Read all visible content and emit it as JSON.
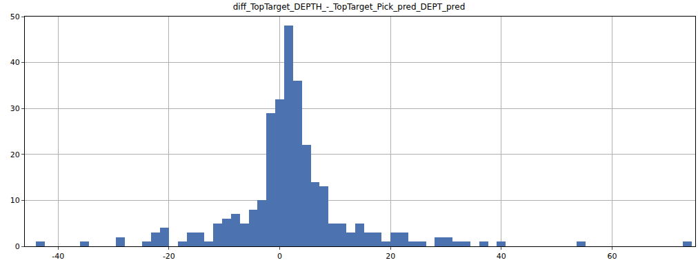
{
  "chart_data": {
    "type": "histogram",
    "title": "diff_TopTarget_DEPTH_-_TopTarget_Pick_pred_DEPT_pred",
    "bins": [
      -44,
      -42.4,
      -40.8,
      -39.2,
      -37.6,
      -36,
      -34.4,
      -32.8,
      -31.2,
      -29.6,
      -28,
      -26.4,
      -24.8,
      -23.2,
      -21.6,
      -20,
      -18.4,
      -16.8,
      -15.2,
      -13.6,
      -12,
      -10.4,
      -8.8,
      -7.2,
      -5.6,
      -4,
      -2.4,
      -0.8,
      0.8,
      2.4,
      4,
      5.6,
      7.2,
      8.8,
      10.4,
      12,
      13.6,
      15.2,
      16.8,
      18.4,
      20,
      21.6,
      23.2,
      24.8,
      26.4,
      28,
      29.6,
      31.2,
      32.8,
      34.4,
      36,
      37.6,
      39.2,
      40.8,
      42.4,
      44,
      45.6,
      47.2,
      48.8,
      50.4,
      52,
      53.6,
      55.2,
      56.8,
      58.4,
      60,
      61.6,
      63.2,
      64.8,
      66.4,
      68,
      69.6,
      71.2,
      72.8,
      74.4
    ],
    "values": [
      1,
      0,
      0,
      0,
      0,
      1,
      0,
      0,
      0,
      2,
      0,
      0,
      1,
      3,
      4,
      0,
      1,
      3,
      3,
      1,
      5,
      6,
      7,
      5,
      8,
      10,
      29,
      32,
      48,
      36,
      22,
      14,
      13,
      5,
      5,
      3,
      5,
      3,
      3,
      1,
      3,
      3,
      1,
      1,
      0,
      2,
      2,
      1,
      1,
      0,
      1,
      0,
      1,
      0,
      0,
      0,
      0,
      0,
      0,
      0,
      0,
      1,
      0,
      0,
      0,
      0,
      0,
      0,
      0,
      0,
      0,
      0,
      0,
      1
    ],
    "color": "#4c72b0",
    "xlim": [
      -46,
      75
    ],
    "xticks": [
      -40,
      -20,
      0,
      20,
      40,
      60
    ],
    "ylim": [
      0,
      50
    ],
    "yticks": [
      0,
      10,
      20,
      30,
      40,
      50
    ],
    "grid": true
  }
}
